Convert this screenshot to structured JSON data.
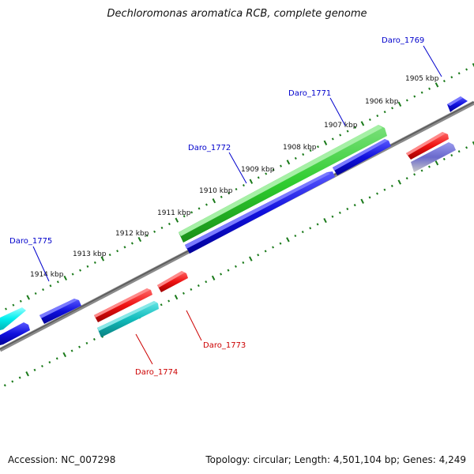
{
  "title": "Dechloromonas aromatica RCB, complete genome",
  "footer": {
    "accession": "Accession: NC_007298",
    "summary": "Topology: circular; Length: 4,501,104 bp; Genes: 4,249"
  },
  "ticks": [
    {
      "label": "1905 kbp"
    },
    {
      "label": "1906 kbp"
    },
    {
      "label": "1907 kbp"
    },
    {
      "label": "1908 kbp"
    },
    {
      "label": "1909 kbp"
    },
    {
      "label": "1910 kbp"
    },
    {
      "label": "1911 kbp"
    },
    {
      "label": "1912 kbp"
    },
    {
      "label": "1913 kbp"
    },
    {
      "label": "1914 kbp"
    }
  ],
  "genes": [
    {
      "name": "Daro_1769",
      "strand": "+",
      "color": "#1010dd"
    },
    {
      "name": "Daro_1771",
      "strand": "+",
      "color": "#2ecc2e"
    },
    {
      "name": "Daro_1772",
      "strand": "+",
      "color": "#1010dd"
    },
    {
      "name": "Daro_1775",
      "strand": "+",
      "color": "#1010dd"
    },
    {
      "name": "Daro_1773",
      "strand": "-",
      "color": "#ee1111"
    },
    {
      "name": "Daro_1774",
      "strand": "-",
      "color": "#11bbbb"
    }
  ],
  "colors": {
    "plus_label": "#0000cc",
    "minus_label": "#cc0000",
    "tick": "#1a7a1a",
    "backbone": "#777777"
  }
}
